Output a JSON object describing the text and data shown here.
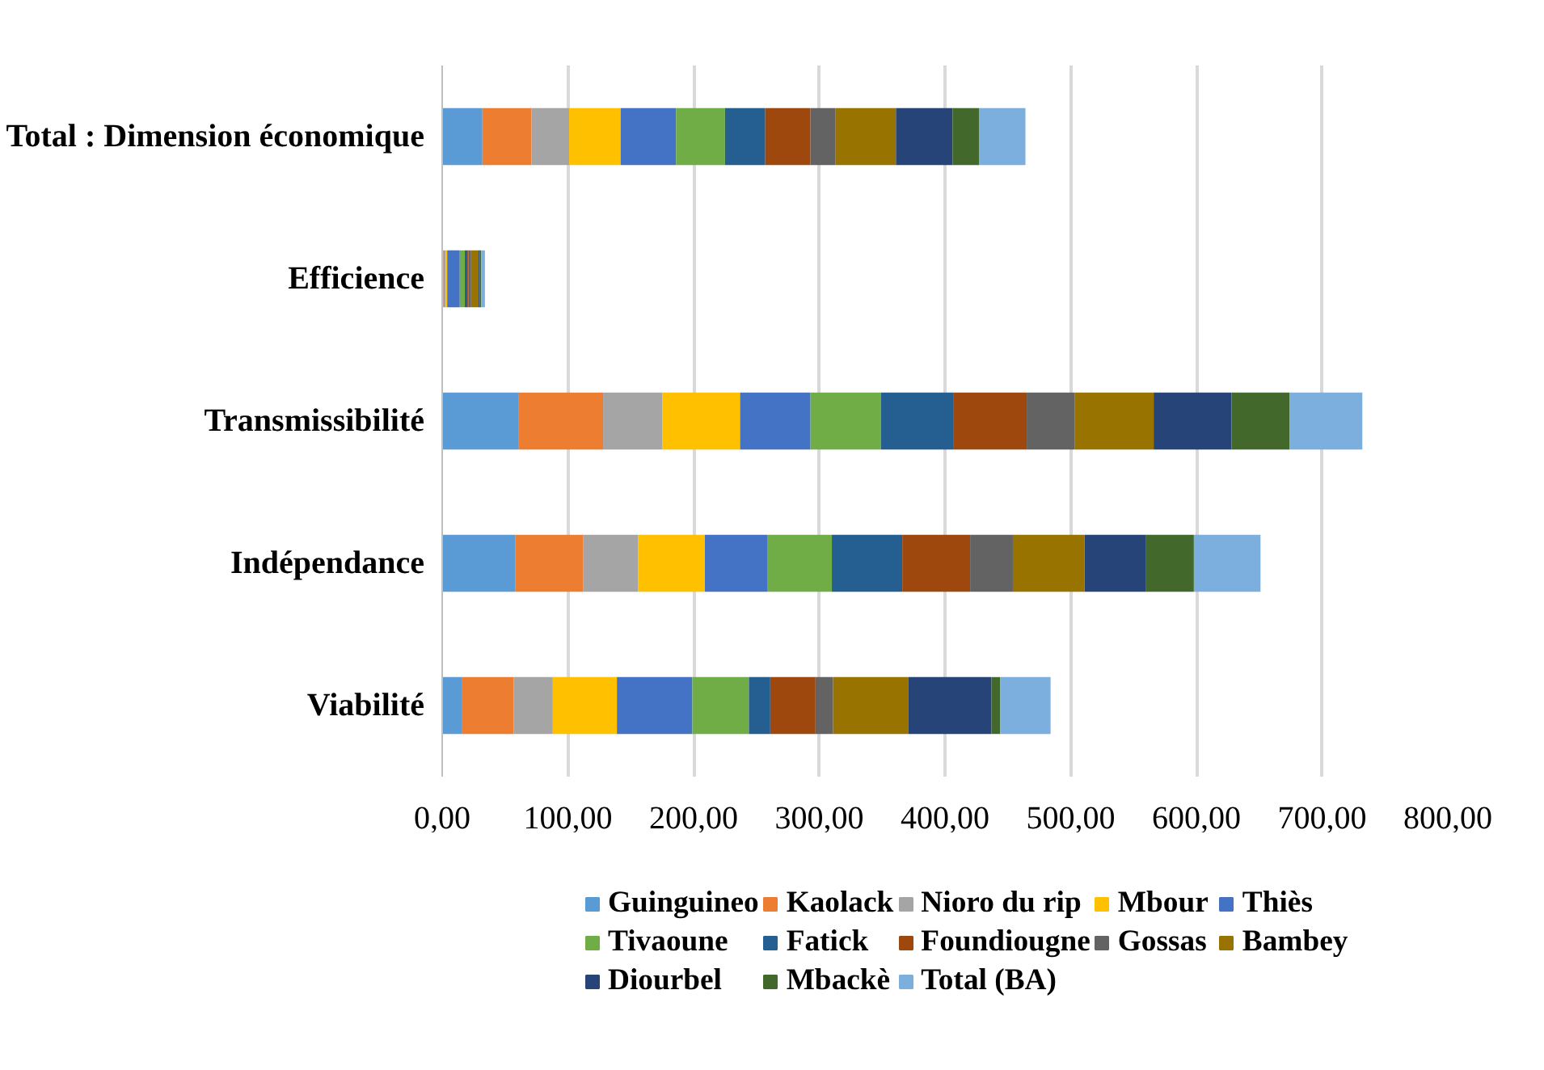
{
  "chart_data": {
    "type": "bar",
    "orientation": "horizontal",
    "stacked": true,
    "categories": [
      "Total : Dimension économique",
      "Efficience",
      "Transmissibilité",
      "Indépendance",
      "Viabilité"
    ],
    "xlim": [
      0,
      800
    ],
    "xticks": [
      {
        "value": 0,
        "label": "0,00"
      },
      {
        "value": 100,
        "label": "100,00"
      },
      {
        "value": 200,
        "label": "200,00"
      },
      {
        "value": 300,
        "label": "300,00"
      },
      {
        "value": 400,
        "label": "400,00"
      },
      {
        "value": 500,
        "label": "500,00"
      },
      {
        "value": 600,
        "label": "600,00"
      },
      {
        "value": 700,
        "label": "700,00"
      },
      {
        "value": 800,
        "label": "800,00"
      }
    ],
    "grid": "x",
    "legend": "bottom",
    "series": [
      {
        "name": "Guinguineo",
        "color": "#5b9bd5",
        "values": [
          32,
          1,
          61,
          58,
          16
        ]
      },
      {
        "name": "Kaolack",
        "color": "#ed7d31",
        "values": [
          39,
          1,
          67,
          54,
          41
        ]
      },
      {
        "name": "Nioro du rip",
        "color": "#a5a5a5",
        "values": [
          30,
          1,
          47,
          44,
          31
        ]
      },
      {
        "name": "Mbour",
        "color": "#ffc000",
        "values": [
          41,
          1,
          62,
          53,
          51
        ]
      },
      {
        "name": "Thiès",
        "color": "#4472c4",
        "values": [
          44,
          10,
          56,
          50,
          60
        ]
      },
      {
        "name": "Tivaoune",
        "color": "#70ad47",
        "values": [
          39,
          4,
          56,
          51,
          45
        ]
      },
      {
        "name": "Fatick",
        "color": "#255e91",
        "values": [
          32,
          2,
          58,
          56,
          17
        ]
      },
      {
        "name": "Foundiougne",
        "color": "#9e480e",
        "values": [
          36,
          1,
          58,
          54,
          36
        ]
      },
      {
        "name": "Gossas",
        "color": "#636363",
        "values": [
          20,
          2,
          38,
          34,
          14
        ]
      },
      {
        "name": "Bambey",
        "color": "#997300",
        "values": [
          48,
          6,
          63,
          57,
          60
        ]
      },
      {
        "name": "Diourbel",
        "color": "#264478",
        "values": [
          45,
          1,
          62,
          49,
          66
        ]
      },
      {
        "name": "Mbackè",
        "color": "#43682b",
        "values": [
          21,
          1,
          46,
          38,
          7
        ]
      },
      {
        "name": "Total (BA)",
        "color": "#7cafdd",
        "values": [
          37,
          3,
          58,
          53,
          40
        ]
      }
    ]
  }
}
